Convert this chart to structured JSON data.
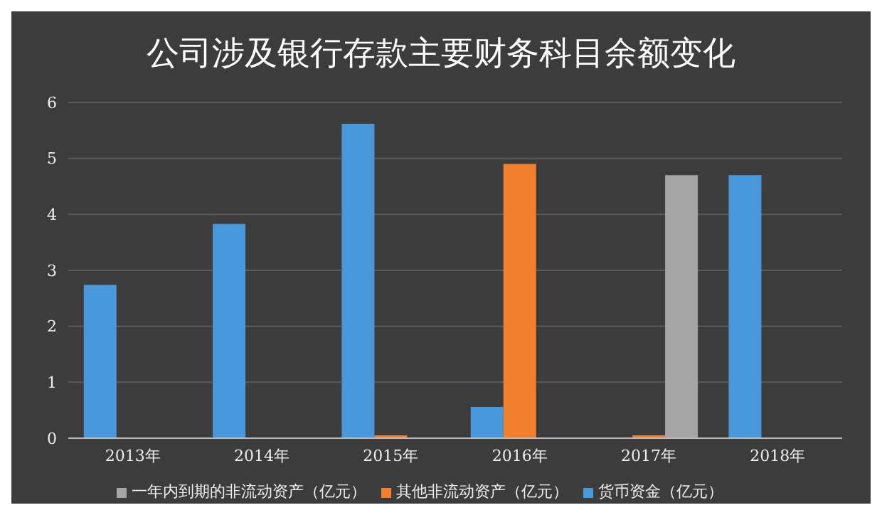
{
  "chart_data": {
    "type": "bar",
    "title": "公司涉及银行存款主要财务科目余额变化",
    "categories": [
      "2013年",
      "2014年",
      "2015年",
      "2016年",
      "2017年",
      "2018年"
    ],
    "series": [
      {
        "name": "货币资金（亿元）",
        "color": "#4a98dc",
        "values": [
          2.74,
          3.83,
          5.62,
          0.56,
          null,
          4.7
        ]
      },
      {
        "name": "其他非流动资产（亿元）",
        "color": "#f07f2e",
        "values": [
          null,
          null,
          0.05,
          4.9,
          0.05,
          null
        ]
      },
      {
        "name": "一年内到期的非流动资产（亿元）",
        "color": "#a5a5a5",
        "values": [
          null,
          null,
          null,
          null,
          4.7,
          null
        ]
      }
    ],
    "ylim": [
      0,
      6
    ],
    "yticks": [
      0,
      1,
      2,
      3,
      4,
      5,
      6
    ],
    "grid": "y",
    "legend": "bottom"
  }
}
